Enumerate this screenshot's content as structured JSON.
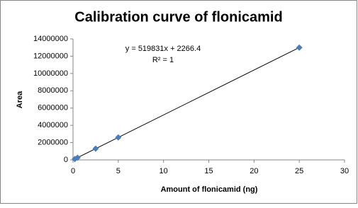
{
  "chart_data": {
    "type": "scatter",
    "title": "Calibration curve of flonicamid",
    "x_label": "Amount of flonicamid  (ng)",
    "y_label": "Area",
    "x": [
      0.2,
      0.5,
      2.5,
      5,
      25
    ],
    "values": [
      100000,
      260000,
      1300000,
      2600000,
      13000000
    ],
    "color": "#4a7ebb",
    "trendline": {
      "slope": 519831,
      "intercept": 2266.4,
      "color": "#000000"
    },
    "annotations": [
      "y = 519831x + 2266.4",
      "R² = 1"
    ],
    "xlim": [
      0,
      30
    ],
    "xticks": [
      0,
      5,
      10,
      15,
      20,
      25,
      30
    ],
    "ylim": [
      0,
      14000000
    ],
    "yticks": [
      0,
      2000000,
      4000000,
      6000000,
      8000000,
      10000000,
      12000000,
      14000000
    ],
    "grid": false
  }
}
